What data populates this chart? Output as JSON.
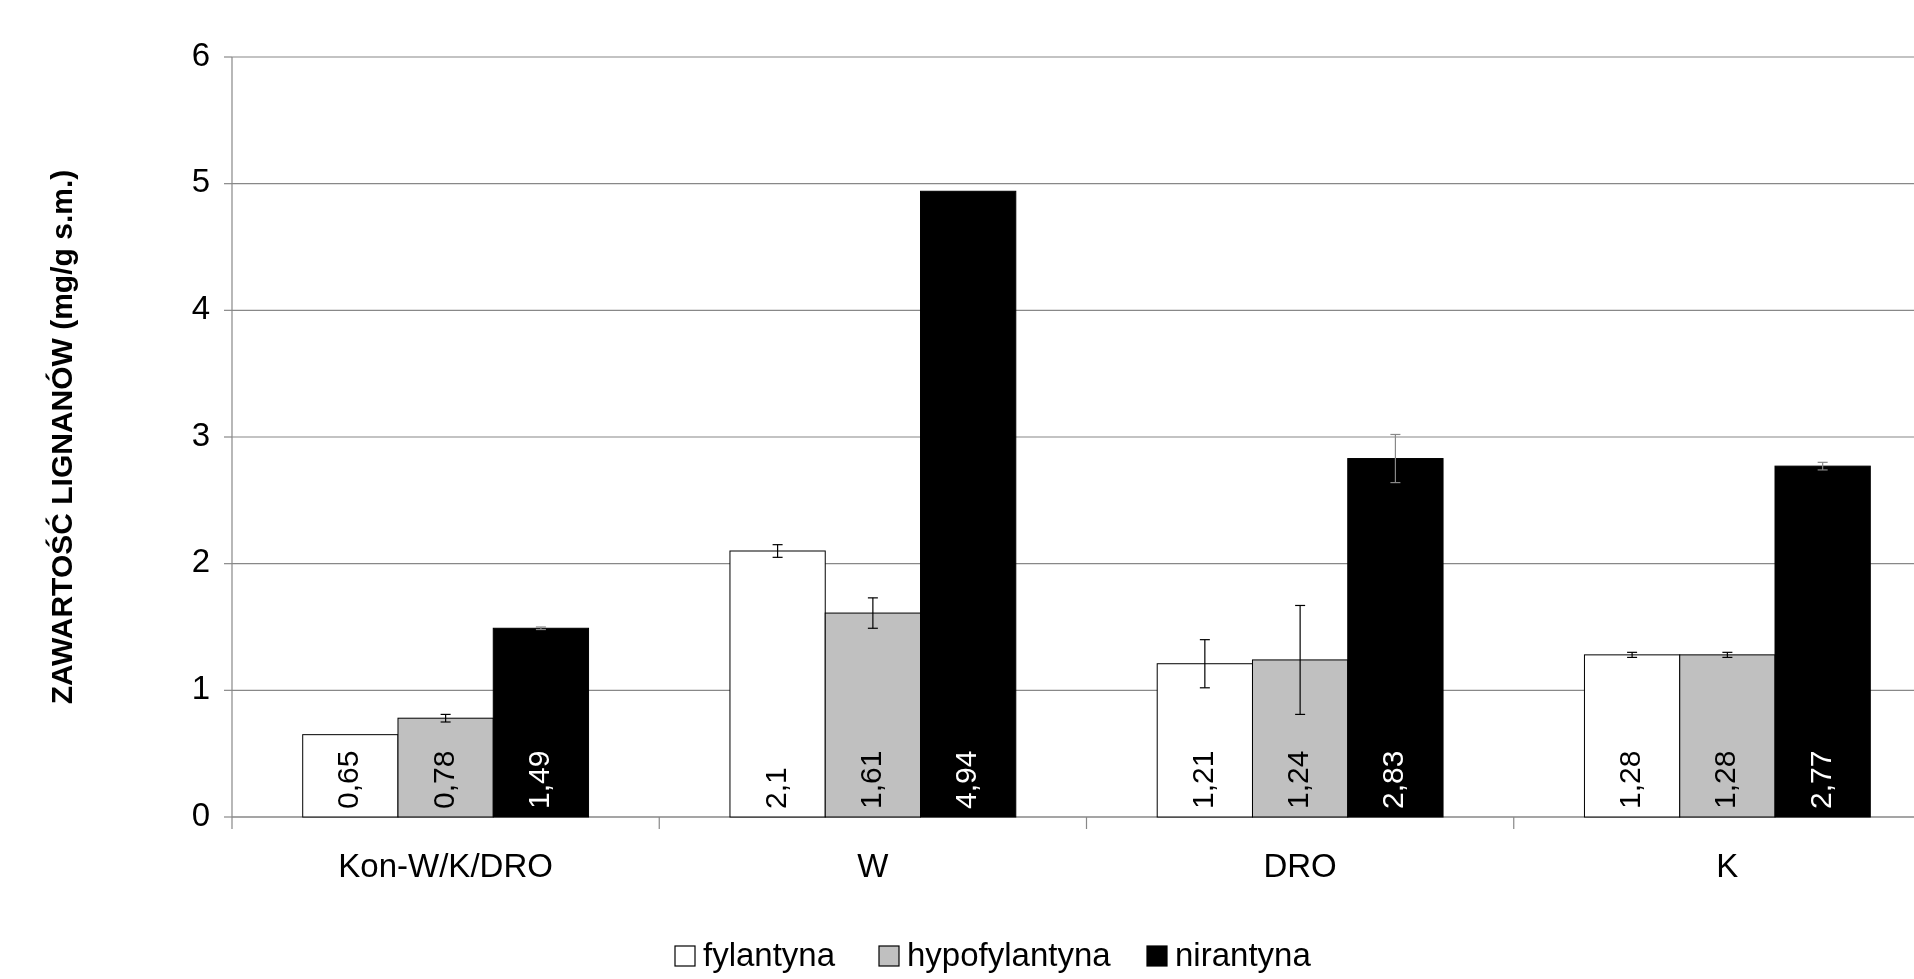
{
  "chart_data": {
    "type": "bar",
    "ylabel": "ZAWARTOŚĆ  LIGNANÓW (mg/g s.m.)",
    "categories": [
      "Kon-W/K/DRO",
      "W",
      "DRO",
      "K"
    ],
    "series": [
      {
        "name": "fylantyna",
        "color": "#ffffff",
        "values": [
          0.65,
          2.1,
          1.21,
          1.28
        ],
        "errors": [
          null,
          0.05,
          0.19,
          0.02
        ],
        "value_labels": [
          "0,65",
          "2,1",
          "1,21",
          "1,28"
        ]
      },
      {
        "name": "hypofylantyna",
        "color": "#c0c0c0",
        "values": [
          0.78,
          1.61,
          1.24,
          1.28
        ],
        "errors": [
          0.03,
          0.12,
          0.43,
          0.02
        ],
        "value_labels": [
          "0,78",
          "1,61",
          "1,24",
          "1,28"
        ]
      },
      {
        "name": "nirantyna",
        "color": "#000000",
        "values": [
          1.49,
          4.94,
          2.83,
          2.77
        ],
        "errors": [
          0.01,
          null,
          0.19,
          0.03
        ],
        "value_labels": [
          "1,49",
          "4,94",
          "2,83",
          "2,77"
        ]
      }
    ],
    "ylim": [
      0,
      6
    ],
    "yticks": [
      0,
      1,
      2,
      3,
      4,
      5,
      6
    ],
    "grid": "y",
    "legend": "bottom"
  }
}
